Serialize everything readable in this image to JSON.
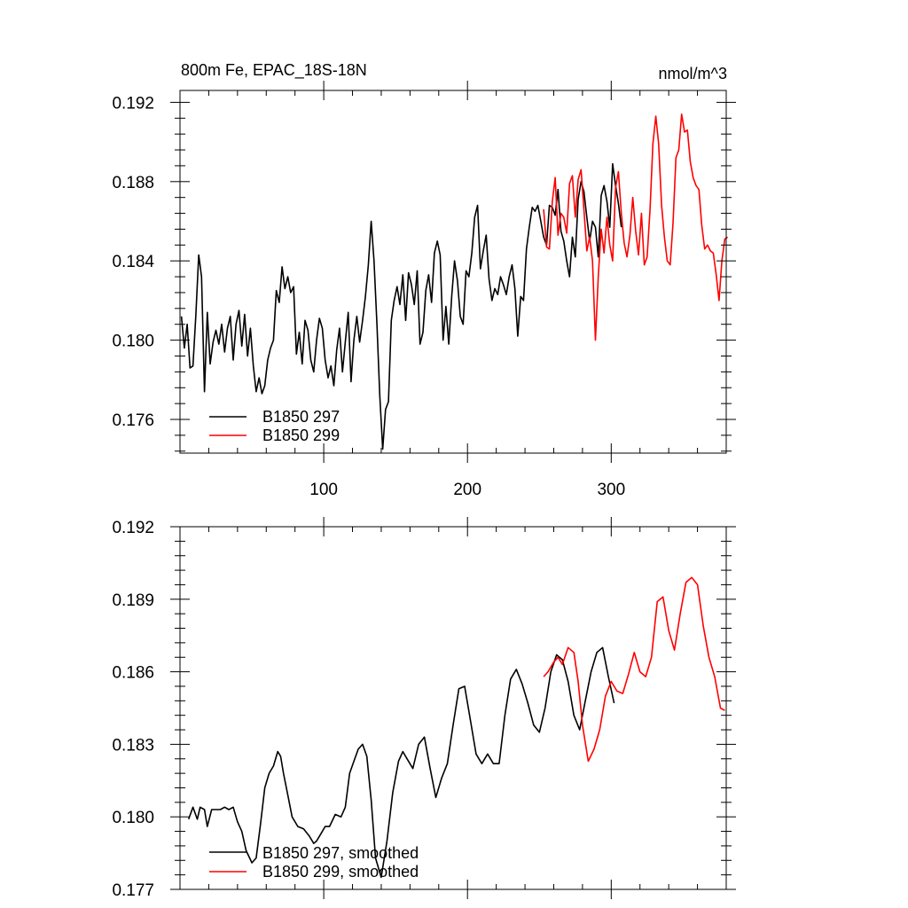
{
  "colors": {
    "run297": "#000000",
    "run299": "#ff0000"
  },
  "chart_data": [
    {
      "type": "line",
      "title": "800m Fe, EPAC_18S-18N",
      "units": "nmol/m^3",
      "xlim": [
        0,
        380
      ],
      "ylim": [
        0.1743,
        0.1926
      ],
      "x_ticks": [
        100,
        200,
        300
      ],
      "x_tick_labels": [
        "100",
        "200",
        "300"
      ],
      "x_minor_step": 20,
      "y_ticks": [
        0.176,
        0.18,
        0.184,
        0.188,
        0.192
      ],
      "y_tick_labels": [
        "0.176",
        "0.180",
        "0.184",
        "0.188",
        "0.192"
      ],
      "y_minor_step": 0.0008,
      "legend": [
        "B1850 297",
        "B1850 299"
      ],
      "legend_position": "bottom-left",
      "series": [
        {
          "name": "B1850 297",
          "color": "#000000",
          "x": [
            1,
            3,
            5,
            7,
            9,
            11,
            13,
            15,
            17,
            19,
            21,
            23,
            25,
            27,
            29,
            31,
            33,
            35,
            37,
            39,
            41,
            43,
            45,
            47,
            49,
            51,
            53,
            55,
            57,
            59,
            61,
            63,
            65,
            67,
            69,
            71,
            73,
            75,
            77,
            79,
            81,
            83,
            85,
            87,
            89,
            91,
            93,
            95,
            97,
            99,
            101,
            103,
            105,
            107,
            109,
            111,
            113,
            115,
            117,
            119,
            121,
            123,
            125,
            127,
            129,
            131,
            133,
            135,
            137,
            139,
            141,
            143,
            145,
            147,
            149,
            151,
            153,
            155,
            157,
            159,
            161,
            163,
            165,
            167,
            169,
            171,
            173,
            175,
            177,
            179,
            181,
            183,
            185,
            187,
            189,
            191,
            193,
            195,
            197,
            199,
            201,
            203,
            205,
            207,
            209,
            211,
            213,
            215,
            217,
            219,
            221,
            223,
            225,
            227,
            229,
            231,
            233,
            235,
            237,
            239,
            241,
            243,
            245,
            247,
            249,
            251,
            253,
            255,
            257,
            259,
            261,
            263,
            265,
            267,
            269,
            271,
            273,
            275,
            277,
            279,
            281,
            283,
            285,
            287,
            289,
            291,
            293,
            295,
            297,
            299,
            301,
            303,
            305,
            307
          ],
          "y": [
            0.1812,
            0.1796,
            0.1808,
            0.1786,
            0.1787,
            0.1812,
            0.1843,
            0.1832,
            0.1774,
            0.1814,
            0.1788,
            0.1799,
            0.1805,
            0.1798,
            0.1808,
            0.1794,
            0.1806,
            0.1812,
            0.179,
            0.1808,
            0.1815,
            0.1797,
            0.1813,
            0.1792,
            0.1806,
            0.1787,
            0.1774,
            0.1781,
            0.1773,
            0.1777,
            0.179,
            0.1796,
            0.18,
            0.1825,
            0.1819,
            0.1837,
            0.1826,
            0.1832,
            0.1824,
            0.1827,
            0.1793,
            0.1804,
            0.1788,
            0.181,
            0.1805,
            0.179,
            0.1784,
            0.18,
            0.1811,
            0.1806,
            0.179,
            0.1781,
            0.1787,
            0.1777,
            0.1795,
            0.1806,
            0.1784,
            0.1799,
            0.1814,
            0.1779,
            0.18,
            0.1812,
            0.1799,
            0.181,
            0.1822,
            0.1838,
            0.186,
            0.184,
            0.1808,
            0.1772,
            0.1745,
            0.1765,
            0.1769,
            0.181,
            0.182,
            0.1827,
            0.1818,
            0.1833,
            0.181,
            0.1834,
            0.1828,
            0.1818,
            0.1835,
            0.1798,
            0.1804,
            0.1825,
            0.1833,
            0.1819,
            0.1844,
            0.185,
            0.1843,
            0.18,
            0.1817,
            0.1798,
            0.1822,
            0.184,
            0.183,
            0.1812,
            0.1808,
            0.1835,
            0.1832,
            0.1844,
            0.1862,
            0.1868,
            0.1836,
            0.1845,
            0.1853,
            0.1831,
            0.182,
            0.1826,
            0.1823,
            0.1832,
            0.1828,
            0.1823,
            0.1832,
            0.1838,
            0.1826,
            0.1802,
            0.1822,
            0.182,
            0.1846,
            0.1857,
            0.1867,
            0.1865,
            0.1868,
            0.186,
            0.1852,
            0.1848,
            0.1868,
            0.1867,
            0.1863,
            0.1876,
            0.1855,
            0.185,
            0.184,
            0.1832,
            0.1852,
            0.1842,
            0.1871,
            0.188,
            0.1875,
            0.1862,
            0.185,
            0.186,
            0.1857,
            0.1842,
            0.1873,
            0.1878,
            0.187,
            0.1857,
            0.1889,
            0.1878,
            0.1869,
            0.1857
          ]
        },
        {
          "name": "B1850 299",
          "color": "#ff0000",
          "x": [
            253,
            255,
            257,
            259,
            261,
            263,
            265,
            267,
            269,
            271,
            273,
            275,
            277,
            279,
            281,
            283,
            285,
            287,
            289,
            291,
            293,
            295,
            297,
            299,
            301,
            303,
            305,
            307,
            309,
            311,
            313,
            315,
            317,
            319,
            321,
            323,
            325,
            327,
            329,
            331,
            333,
            335,
            337,
            339,
            341,
            343,
            345,
            347,
            349,
            351,
            353,
            355,
            357,
            359,
            361,
            363,
            365,
            367,
            369,
            371,
            373,
            375,
            377,
            379,
            381
          ],
          "y": [
            0.1866,
            0.1847,
            0.1846,
            0.187,
            0.1882,
            0.1853,
            0.1864,
            0.1862,
            0.1854,
            0.1879,
            0.1883,
            0.1862,
            0.1881,
            0.1886,
            0.1866,
            0.1845,
            0.1852,
            0.184,
            0.18,
            0.1832,
            0.1856,
            0.1844,
            0.1862,
            0.1848,
            0.184,
            0.1877,
            0.1885,
            0.1864,
            0.1849,
            0.1842,
            0.1853,
            0.1872,
            0.1855,
            0.1843,
            0.1864,
            0.1838,
            0.1842,
            0.1866,
            0.1899,
            0.1913,
            0.1899,
            0.1868,
            0.1852,
            0.184,
            0.1838,
            0.1859,
            0.1892,
            0.1896,
            0.1914,
            0.1905,
            0.1906,
            0.189,
            0.1882,
            0.1878,
            0.1876,
            0.1858,
            0.1846,
            0.1848,
            0.1845,
            0.1844,
            0.1833,
            0.182,
            0.184,
            0.1851,
            0.1852
          ]
        }
      ]
    },
    {
      "type": "line",
      "xlim": [
        0,
        380
      ],
      "ylim": [
        0.177,
        0.192
      ],
      "x_ticks": [
        100,
        200,
        300
      ],
      "x_minor_step": 20,
      "y_ticks": [
        0.177,
        0.18,
        0.183,
        0.186,
        0.189,
        0.192
      ],
      "y_tick_labels": [
        "0.177",
        "0.180",
        "0.183",
        "0.186",
        "0.189",
        "0.192"
      ],
      "y_minor_step": 0.0006,
      "legend": [
        "B1850 297, smoothed",
        "B1850 299, smoothed"
      ],
      "legend_position": "bottom-left",
      "series": [
        {
          "name": "B1850 297, smoothed",
          "color": "#000000",
          "x": [
            6,
            9,
            12,
            14,
            17,
            19,
            22,
            25,
            28,
            31,
            34,
            37,
            40,
            43,
            46,
            50,
            53,
            56,
            59,
            62,
            65,
            68,
            70,
            72,
            75,
            78,
            82,
            86,
            90,
            93,
            95,
            98,
            101,
            104,
            108,
            112,
            115,
            118,
            121,
            124,
            127,
            130,
            133,
            136,
            140,
            144,
            148,
            152,
            155,
            158,
            162,
            166,
            170,
            174,
            178,
            182,
            186,
            190,
            194,
            198,
            202,
            206,
            210,
            214,
            218,
            222,
            226,
            230,
            234,
            238,
            242,
            246,
            250,
            254,
            258,
            262,
            266,
            270,
            274,
            278,
            282,
            286,
            290,
            294,
            298,
            302
          ],
          "y": [
            0.1799,
            0.1804,
            0.1799,
            0.1804,
            0.1803,
            0.1796,
            0.1803,
            0.1803,
            0.1803,
            0.1804,
            0.1803,
            0.1804,
            0.1798,
            0.1794,
            0.1786,
            0.1781,
            0.1783,
            0.1797,
            0.1812,
            0.1818,
            0.1821,
            0.1827,
            0.1825,
            0.1818,
            0.1809,
            0.18,
            0.1796,
            0.1795,
            0.1792,
            0.1789,
            0.179,
            0.1793,
            0.1796,
            0.1796,
            0.1801,
            0.18,
            0.1804,
            0.1818,
            0.1823,
            0.1828,
            0.183,
            0.1825,
            0.1807,
            0.1783,
            0.1775,
            0.179,
            0.181,
            0.1823,
            0.1827,
            0.1824,
            0.182,
            0.183,
            0.1833,
            0.182,
            0.1808,
            0.1816,
            0.1822,
            0.1838,
            0.1853,
            0.1854,
            0.184,
            0.1826,
            0.1822,
            0.1826,
            0.1822,
            0.1822,
            0.1842,
            0.1857,
            0.1861,
            0.1855,
            0.1847,
            0.1838,
            0.1835,
            0.1845,
            0.186,
            0.1867,
            0.1865,
            0.1856,
            0.1842,
            0.1836,
            0.1848,
            0.186,
            0.1868,
            0.187,
            0.1858,
            0.1847
          ]
        },
        {
          "name": "B1850 299, smoothed",
          "color": "#ff0000",
          "x": [
            253,
            256,
            260,
            263,
            266,
            270,
            274,
            277,
            280,
            284,
            288,
            292,
            296,
            300,
            304,
            308,
            312,
            316,
            320,
            324,
            328,
            332,
            336,
            340,
            344,
            348,
            352,
            356,
            360,
            364,
            368,
            372,
            376,
            379
          ],
          "y": [
            0.1858,
            0.186,
            0.1864,
            0.1866,
            0.1863,
            0.187,
            0.1868,
            0.1856,
            0.1838,
            0.1823,
            0.1828,
            0.1836,
            0.185,
            0.1856,
            0.1852,
            0.1851,
            0.1859,
            0.1868,
            0.186,
            0.1858,
            0.1866,
            0.1889,
            0.1891,
            0.1877,
            0.1869,
            0.1884,
            0.1897,
            0.1899,
            0.1896,
            0.1879,
            0.1866,
            0.1858,
            0.1845,
            0.1844
          ]
        }
      ]
    }
  ]
}
